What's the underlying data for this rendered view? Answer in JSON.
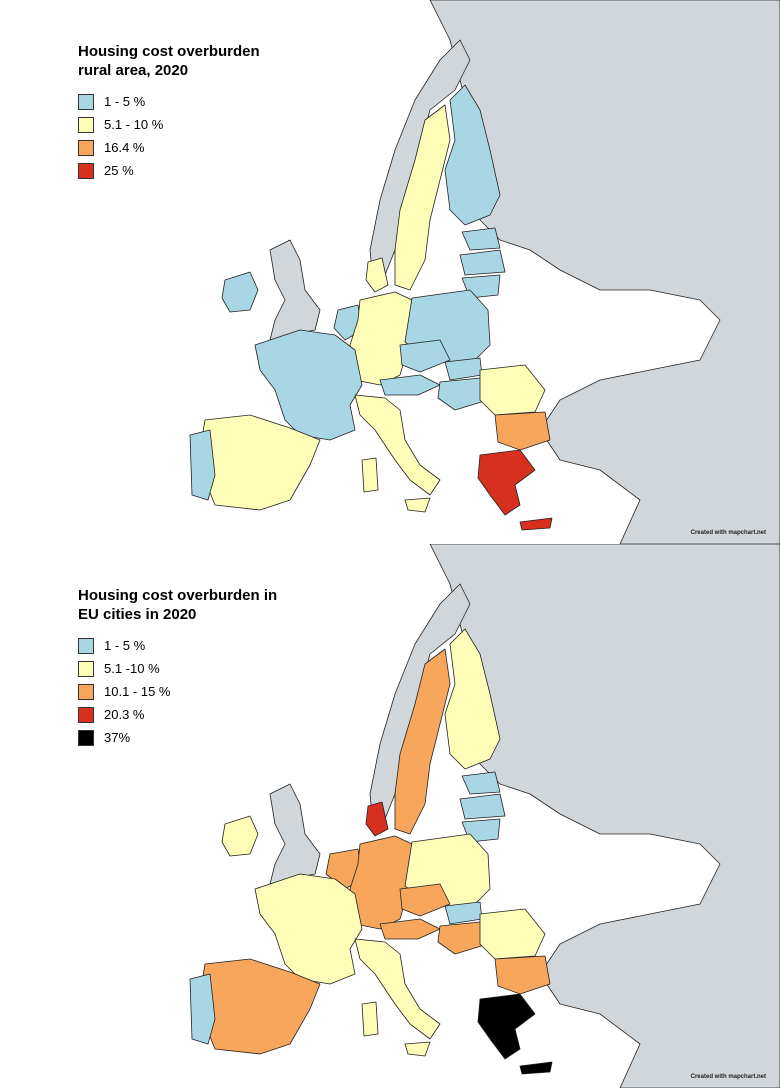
{
  "maps": [
    {
      "title_line1": "Housing cost overburden",
      "title_line2": "rural area, 2020",
      "legend": [
        {
          "label": "1 - 5 %",
          "color": "#a9d6e5"
        },
        {
          "label": "5.1 - 10 %",
          "color": "#fefeb8"
        },
        {
          "label": "16.4 %",
          "color": "#f8a65c"
        },
        {
          "label": "25 %",
          "color": "#d7301f"
        }
      ],
      "credit": "Created with mapchart.net"
    },
    {
      "title_line1": "Housing cost overburden in",
      "title_line2": "EU cities in 2020",
      "legend": [
        {
          "label": "1 - 5 %",
          "color": "#a9d6e5"
        },
        {
          "label": "5.1 -10 %",
          "color": "#fefeb8"
        },
        {
          "label": "10.1 - 15 %",
          "color": "#f8a65c"
        },
        {
          "label": "20.3 %",
          "color": "#d7301f"
        },
        {
          "label": "37%",
          "color": "#000000"
        }
      ],
      "credit": "Created with mapchart.net"
    }
  ],
  "colors": {
    "land_other": "#d0d6d9",
    "water": "#ffffff",
    "border": "#222222"
  }
}
